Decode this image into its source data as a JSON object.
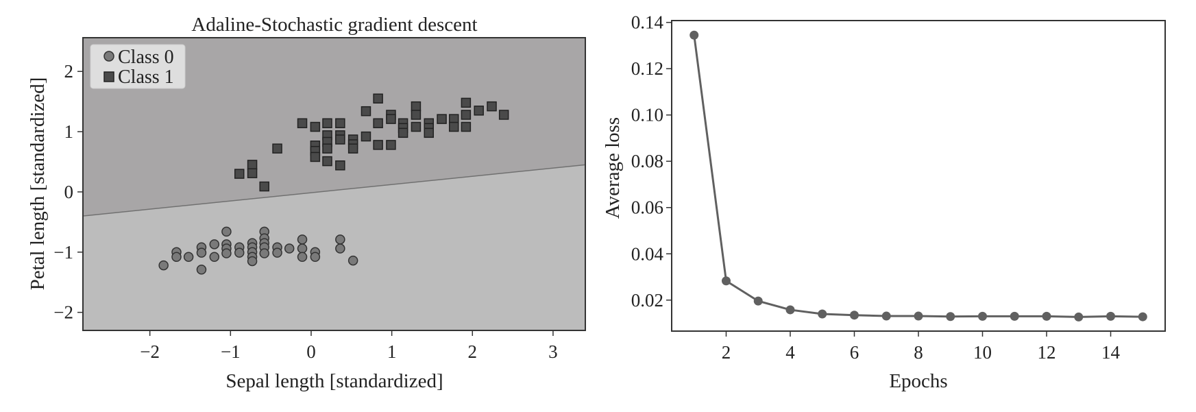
{
  "chart_data": [
    {
      "type": "scatter",
      "title": "Adaline-Stochastic gradient descent",
      "xlabel": "Sepal length [standardized]",
      "ylabel": "Petal length [standardized]",
      "xlim": [
        -2.83,
        3.4
      ],
      "ylim": [
        -2.3,
        2.56
      ],
      "xticks": [
        -2,
        -1,
        0,
        1,
        2,
        3
      ],
      "yticks": [
        -2,
        -1,
        0,
        1,
        2
      ],
      "xtick_labels": [
        "−2",
        "−1",
        "0",
        "1",
        "2",
        "3"
      ],
      "ytick_labels": [
        "−2",
        "−1",
        "0",
        "1",
        "2"
      ],
      "legend_position": "top-left",
      "decision_boundary": {
        "x": [
          -2.83,
          3.4
        ],
        "y": [
          -0.4,
          0.45
        ]
      },
      "colors": {
        "region_class1": "#a8a6a7",
        "region_class0": "#bcbcbc",
        "class0": "#7a7a7a",
        "class1": "#4a4a4a",
        "boundary": "#707070"
      },
      "series": [
        {
          "name": "Class 0",
          "marker": "circle",
          "points": [
            [
              -1.83,
              -1.22
            ],
            [
              -1.67,
              -1.0
            ],
            [
              -1.67,
              -1.08
            ],
            [
              -1.52,
              -1.08
            ],
            [
              -1.36,
              -0.92
            ],
            [
              -1.36,
              -1.01
            ],
            [
              -1.36,
              -1.29
            ],
            [
              -1.2,
              -0.87
            ],
            [
              -1.2,
              -1.08
            ],
            [
              -1.05,
              -0.66
            ],
            [
              -1.05,
              -0.87
            ],
            [
              -1.05,
              -0.94
            ],
            [
              -1.05,
              -1.02
            ],
            [
              -0.89,
              -0.92
            ],
            [
              -0.89,
              -1.01
            ],
            [
              -0.73,
              -0.85
            ],
            [
              -0.73,
              -0.92
            ],
            [
              -0.73,
              -1.0
            ],
            [
              -0.73,
              -1.08
            ],
            [
              -0.73,
              -1.15
            ],
            [
              -0.58,
              -0.66
            ],
            [
              -0.58,
              -0.77
            ],
            [
              -0.58,
              -0.85
            ],
            [
              -0.58,
              -0.92
            ],
            [
              -0.58,
              -1.02
            ],
            [
              -0.42,
              -0.92
            ],
            [
              -0.42,
              -1.01
            ],
            [
              -0.27,
              -0.94
            ],
            [
              -0.11,
              -0.79
            ],
            [
              -0.11,
              -0.94
            ],
            [
              -0.11,
              -1.08
            ],
            [
              0.05,
              -1.0
            ],
            [
              0.05,
              -1.08
            ],
            [
              0.36,
              -0.79
            ],
            [
              0.36,
              -0.94
            ],
            [
              0.52,
              -1.14
            ]
          ]
        },
        {
          "name": "Class 1",
          "marker": "square",
          "points": [
            [
              -0.89,
              0.3
            ],
            [
              -0.73,
              0.45
            ],
            [
              -0.73,
              0.31
            ],
            [
              -0.58,
              0.09
            ],
            [
              -0.42,
              0.72
            ],
            [
              -0.11,
              1.14
            ],
            [
              0.05,
              1.08
            ],
            [
              0.05,
              0.77
            ],
            [
              0.05,
              0.68
            ],
            [
              0.05,
              0.58
            ],
            [
              0.2,
              1.14
            ],
            [
              0.2,
              0.94
            ],
            [
              0.2,
              0.83
            ],
            [
              0.2,
              0.72
            ],
            [
              0.2,
              0.51
            ],
            [
              0.36,
              1.14
            ],
            [
              0.36,
              0.94
            ],
            [
              0.36,
              0.87
            ],
            [
              0.36,
              0.44
            ],
            [
              0.52,
              0.87
            ],
            [
              0.52,
              0.79
            ],
            [
              0.52,
              0.72
            ],
            [
              0.68,
              1.34
            ],
            [
              0.68,
              0.92
            ],
            [
              0.83,
              1.55
            ],
            [
              0.83,
              1.14
            ],
            [
              0.83,
              0.78
            ],
            [
              0.99,
              1.28
            ],
            [
              0.99,
              1.21
            ],
            [
              0.99,
              0.78
            ],
            [
              1.14,
              1.14
            ],
            [
              1.14,
              1.06
            ],
            [
              1.14,
              0.98
            ],
            [
              1.3,
              1.42
            ],
            [
              1.3,
              1.28
            ],
            [
              1.3,
              1.08
            ],
            [
              1.46,
              1.14
            ],
            [
              1.46,
              1.06
            ],
            [
              1.46,
              0.98
            ],
            [
              1.62,
              1.21
            ],
            [
              1.77,
              1.21
            ],
            [
              1.77,
              1.08
            ],
            [
              1.92,
              1.48
            ],
            [
              1.92,
              1.28
            ],
            [
              1.92,
              1.08
            ],
            [
              2.08,
              1.35
            ],
            [
              2.24,
              1.42
            ],
            [
              2.39,
              1.28
            ]
          ]
        }
      ]
    },
    {
      "type": "line",
      "title": "",
      "xlabel": "Epochs",
      "ylabel": "Average loss",
      "xlim": [
        0.3,
        15.7
      ],
      "ylim": [
        0.0066,
        0.1408
      ],
      "xticks": [
        2,
        4,
        6,
        8,
        10,
        12,
        14
      ],
      "xtick_labels": [
        "2",
        "4",
        "6",
        "8",
        "10",
        "12",
        "14"
      ],
      "yticks": [
        0.02,
        0.04,
        0.06,
        0.08,
        0.1,
        0.12,
        0.14
      ],
      "ytick_labels": [
        "0.02",
        "0.04",
        "0.06",
        "0.08",
        "0.10",
        "0.12",
        "0.14"
      ],
      "colors": {
        "line": "#606060"
      },
      "x": [
        1,
        2,
        3,
        4,
        5,
        6,
        7,
        8,
        9,
        10,
        11,
        12,
        13,
        14,
        15
      ],
      "y": [
        0.1345,
        0.0283,
        0.0196,
        0.0158,
        0.014,
        0.0135,
        0.0131,
        0.0131,
        0.0129,
        0.013,
        0.013,
        0.013,
        0.0127,
        0.013,
        0.0128
      ]
    }
  ]
}
